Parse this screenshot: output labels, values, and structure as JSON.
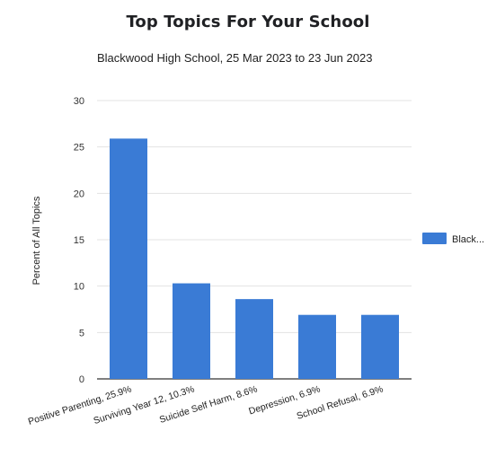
{
  "chart_data": {
    "type": "bar",
    "title": "Top Topics For Your School",
    "subtitle": "Blackwood High School, 25 Mar 2023 to 23 Jun 2023",
    "xlabel": "",
    "ylabel": "Percent of All Topics",
    "categories": [
      "Positive Parenting, 25.9%",
      "Surviving Year 12, 10.3%",
      "Suicide Self Harm, 8.6%",
      "Depression, 6.9%",
      "School Refusal, 6.9%"
    ],
    "series": [
      {
        "name": "Black...",
        "values": [
          25.9,
          10.3,
          8.6,
          6.9,
          6.9
        ],
        "color": "#3a7bd5"
      }
    ],
    "ylim": [
      0,
      30
    ],
    "yticks": [
      "0",
      "5",
      "10",
      "15",
      "20",
      "25",
      "30"
    ],
    "grid": true,
    "legend_position": "right"
  }
}
